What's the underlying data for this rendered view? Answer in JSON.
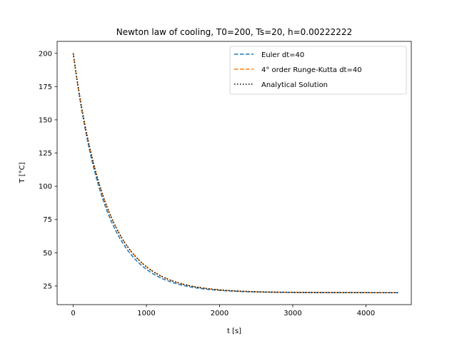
{
  "chart_data": {
    "type": "line",
    "title": "Newton law of cooling, T0=200, Ts=20, h=0.00222222",
    "xlabel": "t [s]",
    "ylabel": "T [°C]",
    "xlim": [
      -220,
      4620
    ],
    "ylim": [
      11,
      209
    ],
    "x_ticks": [
      0,
      1000,
      2000,
      3000,
      4000
    ],
    "y_ticks": [
      25,
      50,
      75,
      100,
      125,
      150,
      175,
      200
    ],
    "legend_position": "upper right",
    "grid": false,
    "model": {
      "T0": 200,
      "Ts": 20,
      "h": 0.00222222,
      "t_end": 4440
    },
    "series": [
      {
        "name": "Euler dt=40",
        "method": "euler",
        "dt": 40,
        "color": "#1f77b4",
        "style": "dashed"
      },
      {
        "name": "4° order Runge-Kutta dt=40",
        "method": "rk4",
        "dt": 40,
        "color": "#ff7f0e",
        "style": "dashed"
      },
      {
        "name": "Analytical Solution",
        "method": "analytical",
        "dt": 20,
        "color": "#000000",
        "style": "dotted"
      }
    ]
  }
}
